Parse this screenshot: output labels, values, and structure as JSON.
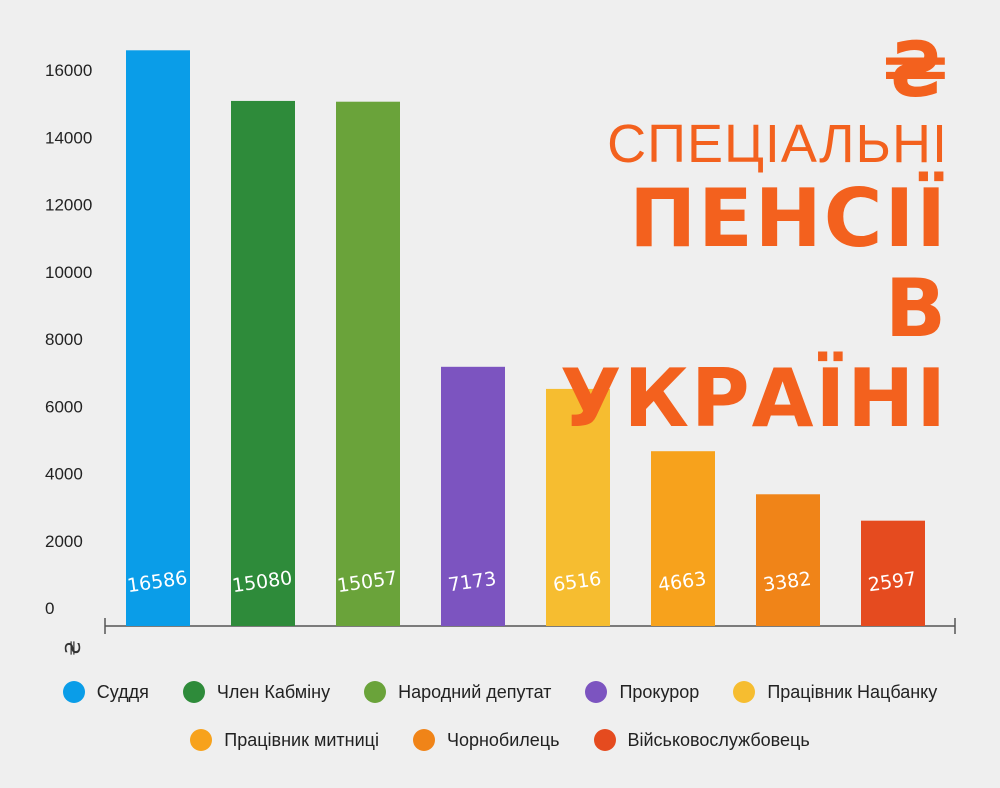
{
  "title": {
    "currency_icon": "₴",
    "line1": "СПЕЦІАЛЬНІ",
    "line2": "ПЕНСІЇ",
    "line3": "В УКРАЇНІ"
  },
  "colors": {
    "accent": "#f3611e",
    "axis": "#555555"
  },
  "chart_data": {
    "type": "bar",
    "ylabel": "₴",
    "ylim": [
      0,
      16000
    ],
    "yticks": [
      0,
      2000,
      4000,
      6000,
      8000,
      10000,
      12000,
      14000,
      16000
    ],
    "grid": false,
    "legend_position": "bottom",
    "categories": [
      "Суддя",
      "Член Кабміну",
      "Народний депутат",
      "Прокурор",
      "Працівник Нацбанку",
      "Працівник митниці",
      "Чорнобилець",
      "Військовослужбовець"
    ],
    "values": [
      16586,
      15080,
      15057,
      7173,
      6516,
      4663,
      3382,
      2597
    ],
    "value_labels": [
      "16586",
      "15080",
      "15057",
      "7173",
      "6516",
      "4663",
      "3382",
      "2597"
    ],
    "colors": [
      "#0a9de8",
      "#2e8b3a",
      "#6aa33a",
      "#7c54c0",
      "#f6bd30",
      "#f7a21c",
      "#f08418",
      "#e54b1f"
    ]
  }
}
